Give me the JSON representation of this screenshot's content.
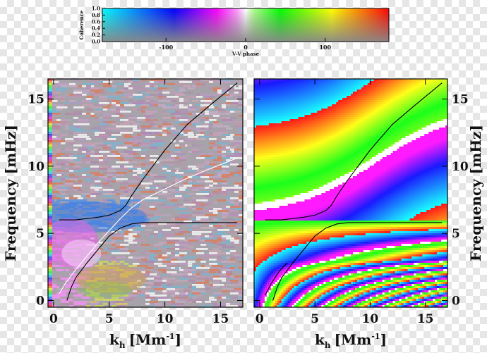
{
  "chart_data": [
    {
      "type": "colorbar",
      "xlabel": "V-V phase",
      "ylabel": "Coherence",
      "x_ticks": [
        "-100",
        "0",
        "100"
      ],
      "y_ticks": [
        "0.0",
        "0.2",
        "0.4",
        "0.6",
        "0.8",
        "1.0"
      ],
      "xlim": [
        -180,
        180
      ],
      "ylim": [
        0,
        1
      ]
    },
    {
      "type": "heatmap",
      "panel": "left",
      "xlabel": "k",
      "xlabel_sub": "h",
      "xlabel_unit": "[Mm",
      "xlabel_sup": "-1",
      "xlabel_close": "]",
      "ylabel": "Frequency [mHz]",
      "x_ticks": [
        "0",
        "5",
        "10",
        "15"
      ],
      "y_ticks": [
        "0",
        "5",
        "10",
        "15"
      ],
      "xlim": [
        -0.5,
        17
      ],
      "ylim": [
        -0.5,
        16.5
      ],
      "curves": [
        {
          "color": "#000000",
          "x": [
            0.5,
            1,
            2,
            3,
            4,
            5,
            6,
            6.5,
            7,
            8,
            10,
            12,
            14,
            16.5
          ],
          "y": [
            6.0,
            6.0,
            6.0,
            6.1,
            6.2,
            6.35,
            6.7,
            7.1,
            7.8,
            9.0,
            11.2,
            13.1,
            14.5,
            16.2
          ]
        },
        {
          "color": "#000000",
          "x": [
            1.2,
            1.6,
            2,
            3,
            4,
            5,
            6,
            7,
            8,
            10,
            13,
            16.5
          ],
          "y": [
            0,
            1.0,
            1.7,
            2.8,
            3.8,
            4.8,
            5.4,
            5.7,
            5.8,
            5.8,
            5.8,
            5.8
          ]
        },
        {
          "color": "#ffffff",
          "x": [
            0.5,
            1,
            2,
            3,
            4,
            5,
            6,
            7,
            8,
            10,
            12,
            14,
            16.5
          ],
          "y": [
            0.5,
            1.2,
            2.3,
            3.3,
            4.3,
            5.2,
            6.1,
            6.9,
            7.5,
            8.3,
            9.1,
            9.8,
            10.6
          ]
        }
      ]
    },
    {
      "type": "heatmap",
      "panel": "right",
      "xlabel": "k",
      "xlabel_sub": "h",
      "xlabel_unit": "[Mm",
      "xlabel_sup": "-1",
      "xlabel_close": "]",
      "ylabel": "Frequency [mHz]",
      "x_ticks": [
        "0",
        "5",
        "10",
        "15"
      ],
      "y_ticks": [
        "0",
        "5",
        "10",
        "15"
      ],
      "xlim": [
        -0.5,
        17
      ],
      "ylim": [
        -0.5,
        16.5
      ],
      "curves": [
        {
          "color": "#000000",
          "x": [
            0.5,
            1,
            2,
            3,
            4,
            5,
            6,
            6.5,
            7,
            8,
            10,
            12,
            14,
            16.5
          ],
          "y": [
            6.0,
            6.0,
            6.0,
            6.1,
            6.2,
            6.35,
            6.7,
            7.1,
            7.8,
            9.0,
            11.2,
            13.1,
            14.5,
            16.2
          ]
        },
        {
          "color": "#000000",
          "x": [
            1.2,
            1.6,
            2,
            3,
            4,
            5,
            6,
            7,
            8,
            10,
            13,
            16.5
          ],
          "y": [
            0,
            1.0,
            1.7,
            2.8,
            3.8,
            4.8,
            5.4,
            5.7,
            5.8,
            5.8,
            5.8,
            5.8
          ]
        },
        {
          "color": "#000000",
          "x": [
            0.5,
            1,
            1.8,
            2.5
          ],
          "y": [
            0.4,
            1.2,
            2.2,
            2.8
          ]
        }
      ]
    }
  ]
}
